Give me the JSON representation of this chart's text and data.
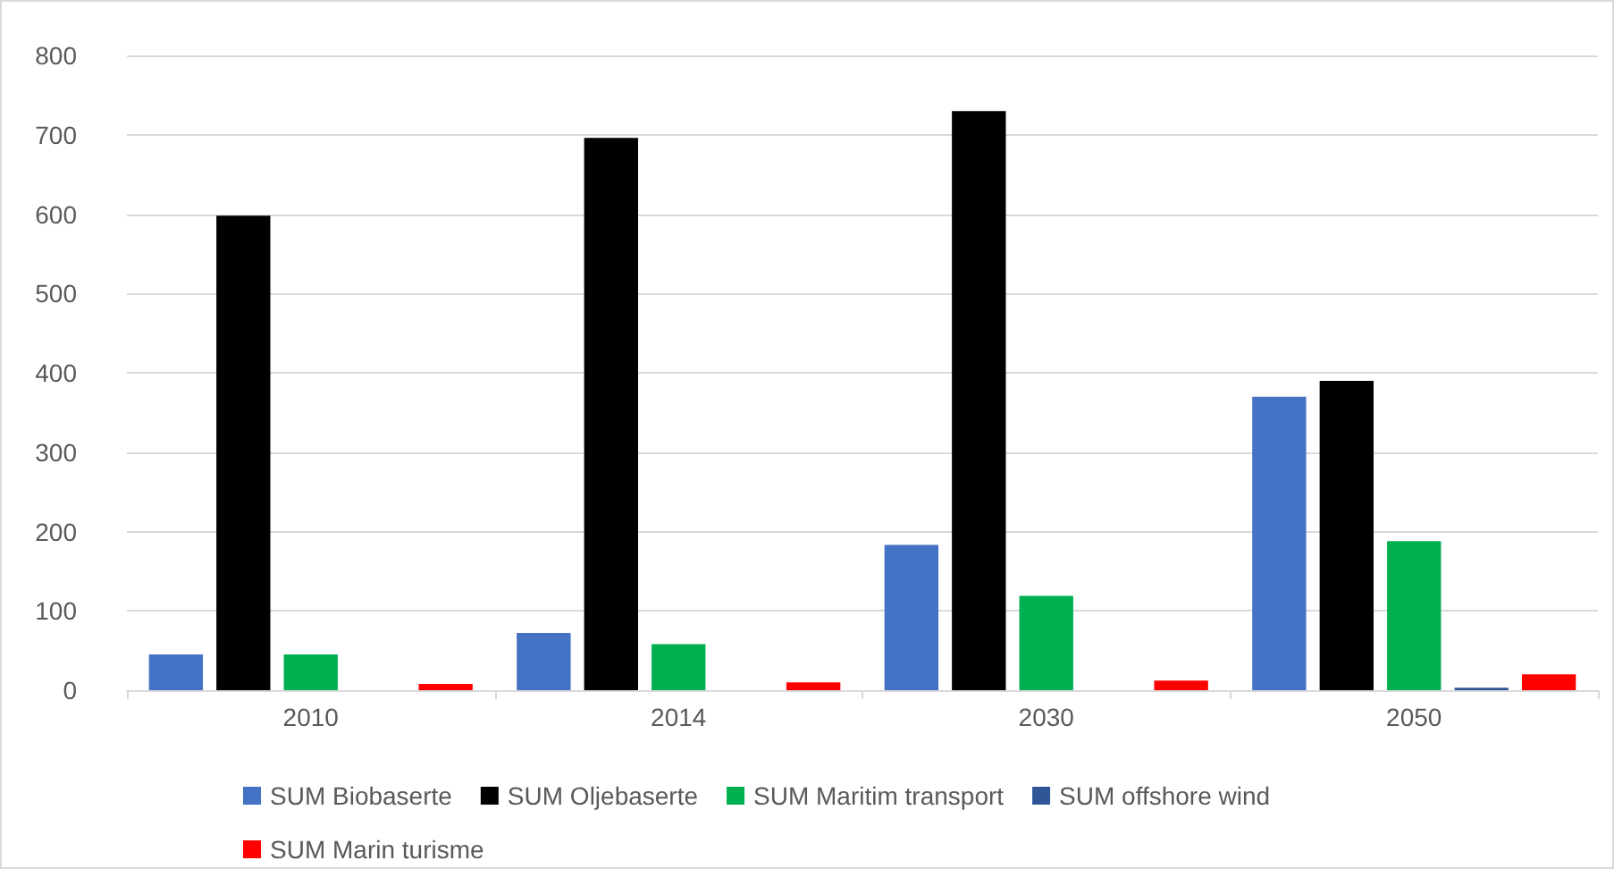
{
  "chart_data": {
    "type": "bar",
    "categories": [
      "2010",
      "2014",
      "2030",
      "2050"
    ],
    "series": [
      {
        "name": "SUM Biobaserte",
        "color": "#4472c4",
        "values": [
          45,
          72,
          183,
          370
        ]
      },
      {
        "name": "SUM Oljebaserte",
        "color": "#000000",
        "values": [
          598,
          696,
          730,
          390
        ]
      },
      {
        "name": "SUM Maritim transport",
        "color": "#00b050",
        "values": [
          45,
          58,
          119,
          188
        ]
      },
      {
        "name": "SUM offshore wind",
        "color": "#2f5597",
        "values": [
          0,
          0,
          0,
          3
        ]
      },
      {
        "name": "SUM Marin turisme",
        "color": "#ff0000",
        "values": [
          8,
          10,
          12,
          20
        ]
      }
    ],
    "ylim": [
      0,
      800
    ],
    "yticks": [
      0,
      100,
      200,
      300,
      400,
      500,
      600,
      700,
      800
    ],
    "grid": "y",
    "legend": "bottom"
  }
}
